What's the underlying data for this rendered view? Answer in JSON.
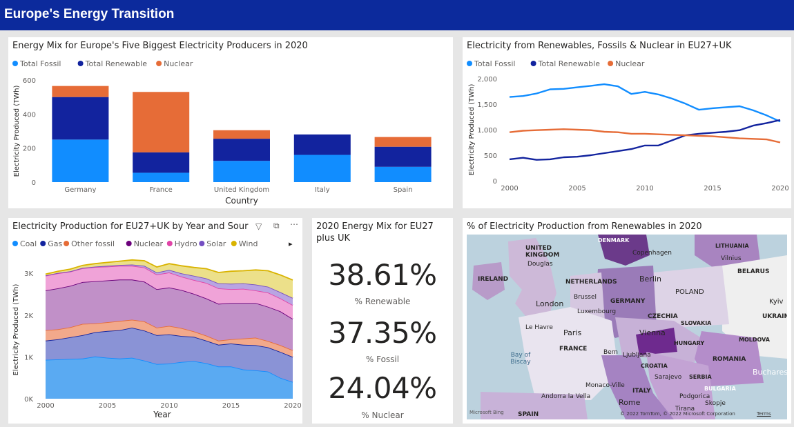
{
  "header": {
    "title": "Europe's Energy Transition"
  },
  "colors": {
    "fossil": "#118dff",
    "renewable": "#12239e",
    "nuclear": "#e66c37",
    "coal": "#118dff",
    "gas": "#12239e",
    "other_fossil": "#e66c37",
    "nuclear2": "#6b007b",
    "hydro": "#e044a7",
    "solar": "#744ec2",
    "wind": "#d9b300"
  },
  "kpi": {
    "title": "2020 Energy Mix for EU27 plus UK",
    "renewable_value": "38.61%",
    "renewable_label": "% Renewable",
    "fossil_value": "37.35%",
    "fossil_label": "% Fossil",
    "nuclear_value": "24.04%",
    "nuclear_label": "% Nuclear"
  },
  "map": {
    "title": "% of Electricity Production from Renewables in 2020",
    "labels": [
      "DENMARK",
      "UNITED KINGDOM",
      "Douglas",
      "Copenhagen",
      "LITHUANIA",
      "Vilnius",
      "BELARUS",
      "IRELAND",
      "NETHERLANDS",
      "Berlin",
      "Brussel",
      "London",
      "Luxembourg",
      "GERMANY",
      "POLAND",
      "Kyiv",
      "UKRAINE",
      "CZECHIA",
      "SLOVAKIA",
      "Le Havre",
      "Paris",
      "Vienna",
      "HUNGARY",
      "MOLDOVA",
      "Bay of Biscay",
      "FRANCE",
      "Bern",
      "Ljubljana",
      "ROMANIA",
      "CROATIA",
      "Bucharest",
      "Sarajevo",
      "SERBIA",
      "BULGARIA",
      "Monaco-Ville",
      "Andorra la Vella",
      "ITALY",
      "Podgorica",
      "Tirana",
      "Skopje",
      "SPAIN",
      "Rome"
    ],
    "copyright": "© 2022 TomTom, © 2022 Microsoft Corporation",
    "terms": "Terms",
    "logo": "Microsoft Bing"
  },
  "chart_data": [
    {
      "type": "bar",
      "stacked": true,
      "title": "Energy Mix for Europe's Five Biggest Electricity Producers in 2020",
      "categories": [
        "Germany",
        "France",
        "United Kingdom",
        "Italy",
        "Spain"
      ],
      "series": [
        {
          "name": "Total Fossil",
          "values": [
            250,
            55,
            125,
            160,
            90
          ]
        },
        {
          "name": "Total Renewable",
          "values": [
            250,
            120,
            130,
            120,
            118
          ]
        },
        {
          "name": "Nuclear",
          "values": [
            65,
            355,
            50,
            0,
            57
          ]
        }
      ],
      "xlabel": "Country",
      "ylabel": "Electricity Produced (TWh)",
      "ylim": [
        0,
        600
      ],
      "yticks": [
        "0",
        "200",
        "400",
        "600"
      ]
    },
    {
      "type": "line",
      "title": "Electricity from Renewables, Fossils & Nuclear in EU27+UK",
      "x": [
        2000,
        2001,
        2002,
        2003,
        2004,
        2005,
        2006,
        2007,
        2008,
        2009,
        2010,
        2011,
        2012,
        2013,
        2014,
        2015,
        2016,
        2017,
        2018,
        2019,
        2020
      ],
      "series": [
        {
          "name": "Total Fossil",
          "values": [
            1640,
            1660,
            1710,
            1790,
            1800,
            1830,
            1860,
            1890,
            1850,
            1700,
            1740,
            1690,
            1610,
            1510,
            1390,
            1420,
            1440,
            1460,
            1380,
            1280,
            1160
          ]
        },
        {
          "name": "Total Renewable",
          "values": [
            420,
            450,
            410,
            420,
            460,
            470,
            500,
            540,
            580,
            620,
            690,
            690,
            790,
            890,
            920,
            940,
            960,
            990,
            1080,
            1130,
            1190
          ]
        },
        {
          "name": "Nuclear",
          "values": [
            950,
            980,
            990,
            1000,
            1010,
            1000,
            990,
            960,
            950,
            920,
            920,
            910,
            900,
            890,
            880,
            870,
            850,
            830,
            820,
            810,
            750
          ]
        }
      ],
      "xlabel": "",
      "ylabel": "Electricity Produced (TWh)",
      "ylim": [
        0,
        2000
      ],
      "yticks": [
        "0",
        "500",
        "1,000",
        "1,500",
        "2,000"
      ],
      "xticks": [
        "2000",
        "2005",
        "2010",
        "2015",
        "2020"
      ]
    },
    {
      "type": "area",
      "stacked": true,
      "title": "Electricity Production for EU27+UK by Year and Sour",
      "x": [
        2000,
        2001,
        2002,
        2003,
        2004,
        2005,
        2006,
        2007,
        2008,
        2009,
        2010,
        2011,
        2012,
        2013,
        2014,
        2015,
        2016,
        2017,
        2018,
        2019,
        2020
      ],
      "series": [
        {
          "name": "Coal",
          "values": [
            930,
            940,
            950,
            960,
            1010,
            980,
            960,
            980,
            910,
            830,
            840,
            880,
            900,
            850,
            770,
            770,
            700,
            680,
            650,
            500,
            400
          ]
        },
        {
          "name": "Gas",
          "values": [
            460,
            480,
            520,
            560,
            580,
            640,
            680,
            720,
            720,
            690,
            700,
            620,
            580,
            540,
            520,
            550,
            590,
            600,
            580,
            620,
            600
          ]
        },
        {
          "name": "Other fossil",
          "values": [
            250,
            240,
            240,
            270,
            210,
            210,
            220,
            190,
            220,
            180,
            200,
            190,
            130,
            120,
            100,
            100,
            150,
            180,
            150,
            160,
            160
          ]
        },
        {
          "name": "Nuclear",
          "values": [
            950,
            980,
            990,
            1000,
            1010,
            1000,
            990,
            960,
            950,
            920,
            920,
            910,
            900,
            890,
            880,
            870,
            850,
            830,
            820,
            810,
            750
          ]
        },
        {
          "name": "Hydro",
          "values": [
            350,
            360,
            340,
            330,
            340,
            330,
            330,
            330,
            340,
            350,
            360,
            320,
            330,
            370,
            370,
            330,
            340,
            300,
            340,
            310,
            330
          ]
        },
        {
          "name": "Solar",
          "values": [
            10,
            10,
            10,
            10,
            10,
            20,
            20,
            30,
            40,
            50,
            60,
            80,
            100,
            110,
            120,
            130,
            130,
            140,
            140,
            150,
            170
          ]
        },
        {
          "name": "Wind",
          "values": [
            30,
            40,
            50,
            60,
            70,
            80,
            90,
            110,
            120,
            130,
            150,
            180,
            200,
            230,
            260,
            300,
            300,
            350,
            380,
            410,
            430
          ]
        }
      ],
      "xlabel": "Year",
      "ylabel": "Electricity Produced (TWh)",
      "ylim": [
        0,
        3300
      ],
      "yticks": [
        "0K",
        "1K",
        "2K",
        "3K"
      ],
      "xticks": [
        "2000",
        "2005",
        "2010",
        "2015",
        "2020"
      ],
      "legend_more": "▸"
    }
  ]
}
